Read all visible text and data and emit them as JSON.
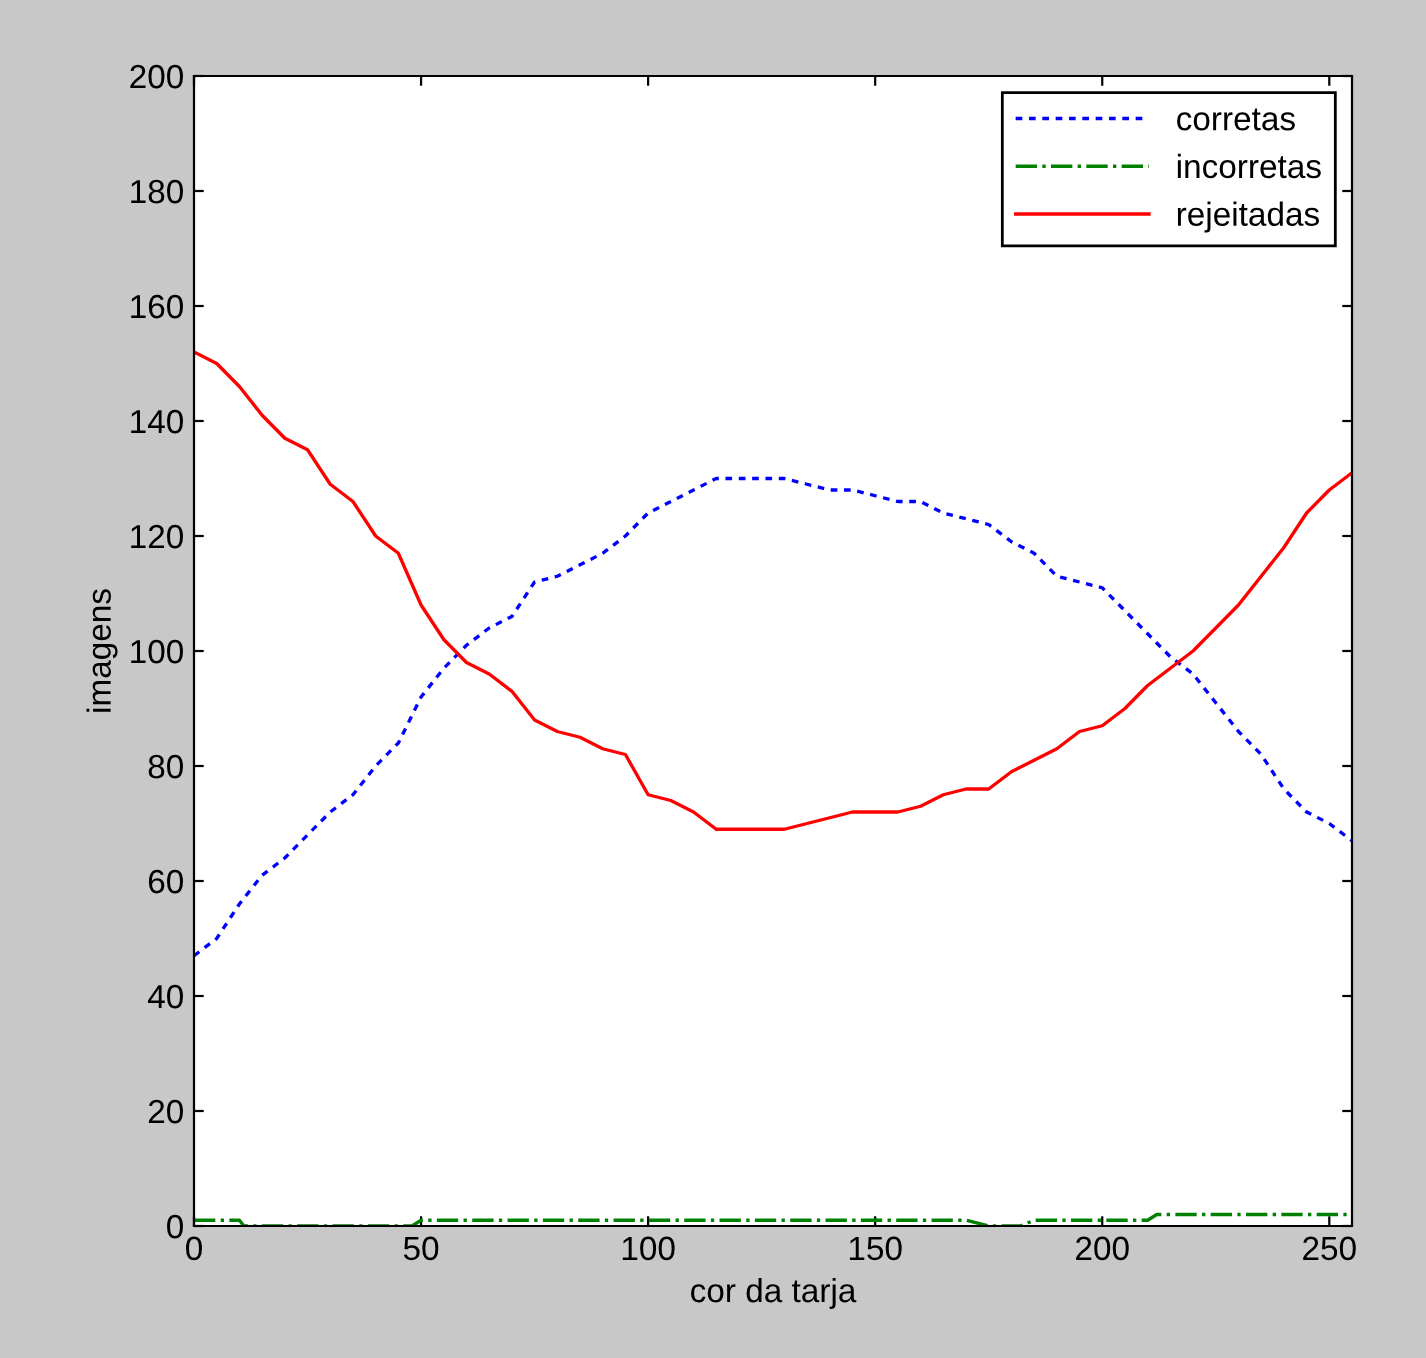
{
  "chart_data": {
    "type": "line",
    "xlabel": "cor da tarja",
    "ylabel": "imagens",
    "xlim": [
      0,
      255
    ],
    "ylim": [
      0,
      200
    ],
    "xticks": [
      0,
      50,
      100,
      150,
      200,
      250
    ],
    "yticks": [
      0,
      20,
      40,
      60,
      80,
      100,
      120,
      140,
      160,
      180,
      200
    ],
    "grid": false,
    "legend": "top right",
    "series": [
      {
        "name": "corretas",
        "color": "#0000ff",
        "line_style": "dotted",
        "x": [
          0,
          5,
          10,
          15,
          20,
          25,
          30,
          35,
          40,
          45,
          50,
          55,
          60,
          65,
          70,
          75,
          80,
          85,
          90,
          95,
          100,
          105,
          110,
          115,
          120,
          125,
          130,
          135,
          140,
          145,
          150,
          155,
          160,
          165,
          170,
          175,
          180,
          185,
          190,
          195,
          200,
          205,
          210,
          215,
          220,
          225,
          230,
          235,
          240,
          245,
          250,
          255
        ],
        "values": [
          47,
          50,
          56,
          61,
          64,
          68,
          72,
          75,
          80,
          84,
          92,
          97,
          101,
          104,
          106,
          112,
          113,
          115,
          117,
          120,
          124,
          126,
          128,
          130,
          130,
          130,
          130,
          129,
          128,
          128,
          127,
          126,
          126,
          124,
          123,
          122,
          119,
          117,
          113,
          112,
          111,
          107,
          103,
          99,
          96,
          91,
          86,
          82,
          76,
          72,
          70,
          67
        ]
      },
      {
        "name": "incorretas",
        "color": "#008000",
        "line_style": "dashdot",
        "x": [
          0,
          10,
          11,
          48,
          50,
          170,
          175,
          182,
          185,
          210,
          212,
          255
        ],
        "values": [
          1,
          1,
          0,
          0,
          1,
          1,
          0,
          0,
          1,
          1,
          2,
          2
        ]
      },
      {
        "name": "rejeitadas",
        "color": "#ff0000",
        "line_style": "solid",
        "x": [
          0,
          5,
          10,
          15,
          20,
          25,
          30,
          35,
          40,
          45,
          50,
          55,
          60,
          65,
          70,
          75,
          80,
          85,
          90,
          95,
          100,
          105,
          110,
          115,
          120,
          125,
          130,
          135,
          140,
          145,
          150,
          155,
          160,
          165,
          170,
          175,
          180,
          185,
          190,
          195,
          200,
          205,
          210,
          215,
          220,
          225,
          230,
          235,
          240,
          245,
          250,
          255
        ],
        "values": [
          152,
          150,
          146,
          141,
          137,
          135,
          129,
          126,
          120,
          117,
          108,
          102,
          98,
          96,
          93,
          88,
          86,
          85,
          83,
          82,
          75,
          74,
          72,
          69,
          69,
          69,
          69,
          70,
          71,
          72,
          72,
          72,
          73,
          75,
          76,
          76,
          79,
          81,
          83,
          86,
          87,
          90,
          94,
          97,
          100,
          104,
          108,
          113,
          118,
          124,
          128,
          131
        ]
      }
    ]
  }
}
